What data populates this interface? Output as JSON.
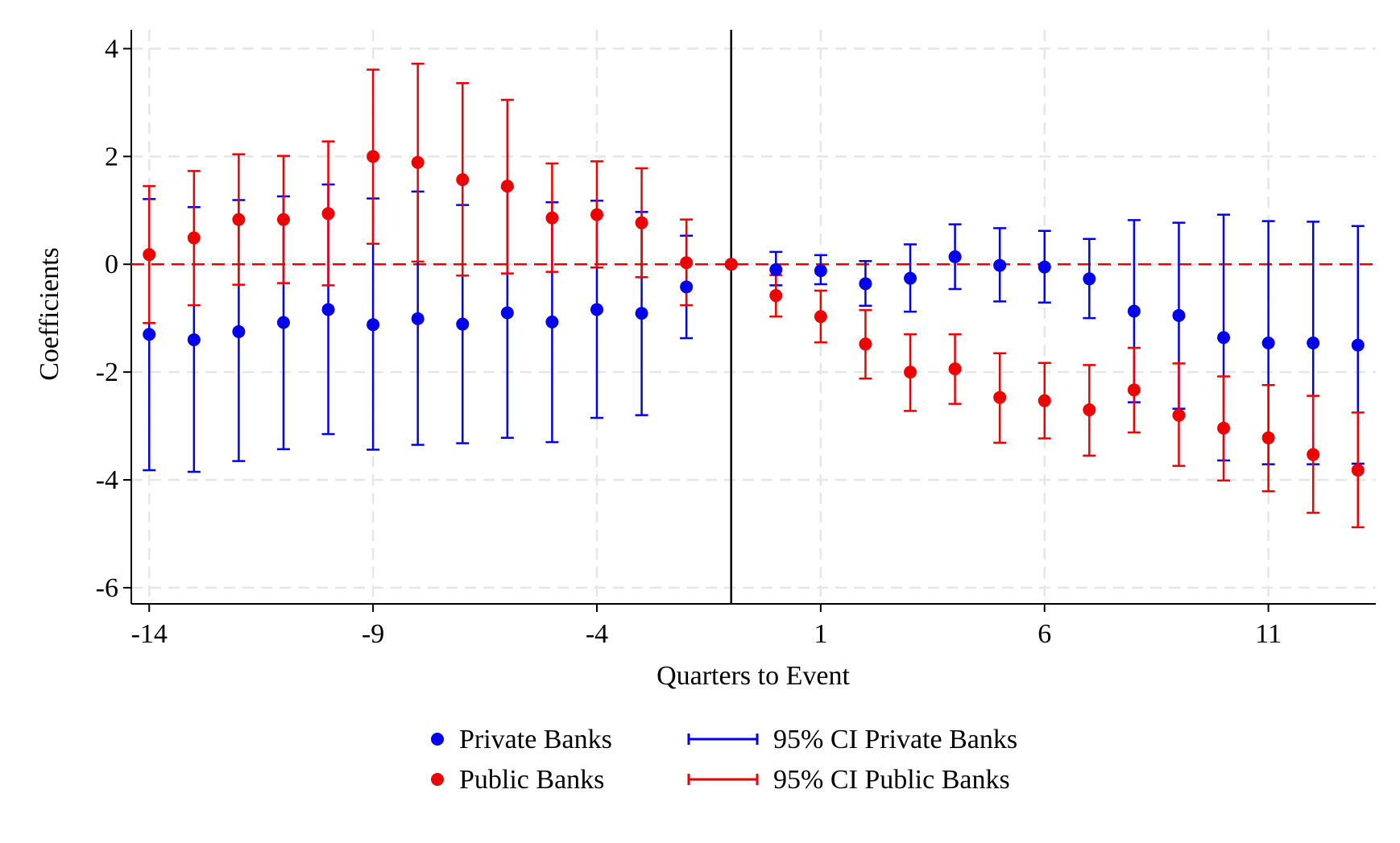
{
  "chart_data": {
    "type": "scatter",
    "xlabel": "Quarters to Event",
    "ylabel": "Coefficients",
    "xlim": [
      -14.4,
      13.4
    ],
    "ylim": [
      -6.3,
      4.35
    ],
    "xticks": [
      -14,
      -9,
      -4,
      1,
      6,
      11
    ],
    "yticks": [
      4,
      2,
      0,
      -2,
      -4,
      -6
    ],
    "grid": true,
    "reference_lines": {
      "horizontal_y": 0,
      "vertical_x": -1
    },
    "legend": {
      "placement": "bottom",
      "entries": [
        {
          "label": "Private Banks",
          "kind": "marker",
          "color": "#0000ee"
        },
        {
          "label": "95% CI Private Banks",
          "kind": "ci",
          "color": "#0000ee"
        },
        {
          "label": "Public Banks",
          "kind": "marker",
          "color": "#ee0000"
        },
        {
          "label": "95% CI Public Banks",
          "kind": "ci",
          "color": "#ee0000"
        }
      ]
    },
    "series": [
      {
        "name": "Private Banks",
        "color": "#0000ee",
        "x": [
          -14,
          -13,
          -12,
          -11,
          -10,
          -9,
          -8,
          -7,
          -6,
          -5,
          -4,
          -3,
          -2,
          -1,
          0,
          1,
          2,
          3,
          4,
          5,
          6,
          7,
          8,
          9,
          10,
          11,
          12,
          13
        ],
        "y": [
          -1.3,
          -1.4,
          -1.25,
          -1.08,
          -0.84,
          -1.12,
          -1.01,
          -1.11,
          -0.9,
          -1.07,
          -0.84,
          -0.91,
          -0.42,
          0.0,
          -0.1,
          -0.12,
          -0.36,
          -0.26,
          0.14,
          -0.02,
          -0.05,
          -0.27,
          -0.87,
          -0.95,
          -1.36,
          -1.46,
          -1.46,
          -1.5
        ],
        "ci_low": [
          -3.82,
          -3.85,
          -3.65,
          -3.43,
          -3.15,
          -3.44,
          -3.35,
          -3.32,
          -3.22,
          -3.3,
          -2.85,
          -2.8,
          -1.37,
          null,
          -0.39,
          -0.37,
          -0.77,
          -0.88,
          -0.46,
          -0.69,
          -0.71,
          -1.0,
          -2.56,
          -2.68,
          -3.64,
          -3.71,
          -3.71,
          -3.7
        ],
        "ci_high": [
          1.21,
          1.06,
          1.19,
          1.26,
          1.48,
          1.22,
          1.35,
          1.1,
          1.42,
          1.15,
          1.18,
          0.97,
          0.53,
          null,
          0.23,
          0.17,
          0.06,
          0.37,
          0.74,
          0.67,
          0.62,
          0.47,
          0.82,
          0.77,
          0.92,
          0.8,
          0.79,
          0.71
        ]
      },
      {
        "name": "Public Banks",
        "color": "#ee0000",
        "x": [
          -14,
          -13,
          -12,
          -11,
          -10,
          -9,
          -8,
          -7,
          -6,
          -5,
          -4,
          -3,
          -2,
          -1,
          0,
          1,
          2,
          3,
          4,
          5,
          6,
          7,
          8,
          9,
          10,
          11,
          12,
          13
        ],
        "y": [
          0.18,
          0.49,
          0.83,
          0.83,
          0.94,
          2.0,
          1.89,
          1.57,
          1.45,
          0.86,
          0.92,
          0.77,
          0.03,
          0.0,
          -0.58,
          -0.97,
          -1.48,
          -2.0,
          -1.94,
          -2.47,
          -2.53,
          -2.7,
          -2.33,
          -2.8,
          -3.04,
          -3.22,
          -3.53,
          -3.82
        ],
        "ci_low": [
          -1.09,
          -0.76,
          -0.38,
          -0.35,
          -0.39,
          0.38,
          0.05,
          -0.21,
          -0.17,
          -0.14,
          -0.06,
          -0.24,
          -0.76,
          null,
          -0.97,
          -1.45,
          -2.12,
          -2.72,
          -2.59,
          -3.31,
          -3.23,
          -3.55,
          -3.12,
          -3.74,
          -4.01,
          -4.21,
          -4.61,
          -4.88
        ],
        "ci_high": [
          1.45,
          1.73,
          2.04,
          2.01,
          2.28,
          3.61,
          3.72,
          3.36,
          3.05,
          1.87,
          1.91,
          1.78,
          0.83,
          null,
          -0.2,
          -0.49,
          -0.85,
          -1.3,
          -1.3,
          -1.65,
          -1.83,
          -1.87,
          -1.55,
          -1.84,
          -2.08,
          -2.24,
          -2.44,
          -2.75
        ]
      }
    ]
  }
}
